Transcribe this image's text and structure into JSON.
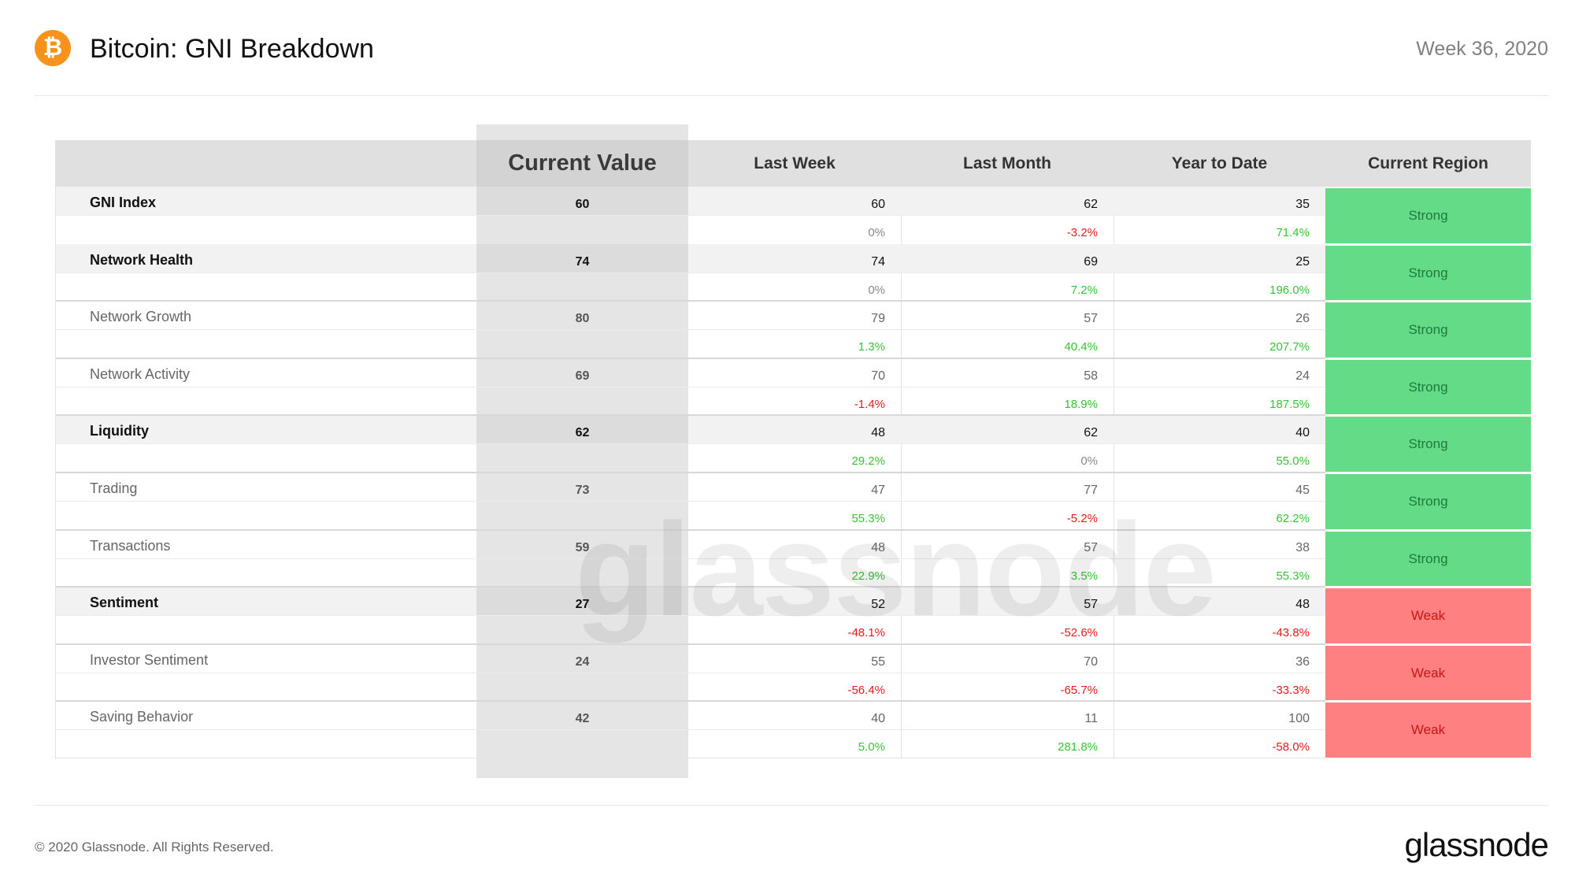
{
  "header": {
    "logo_glyph": "₿",
    "title": "Bitcoin: GNI Breakdown",
    "week": "Week 36, 2020"
  },
  "watermark": "glassnode",
  "footer": {
    "copyright": "© 2020 Glassnode. All Rights Reserved.",
    "brand": "glassnode"
  },
  "colors": {
    "bitcoin_orange": "#f7931a",
    "strong_bg": "#63db87",
    "weak_bg": "#ff8080",
    "positive": "#33c633",
    "negative": "#e31b1b"
  },
  "chart_data": {
    "type": "table",
    "columns": [
      "",
      "Current Value",
      "Last Week",
      "Last Month",
      "Year to Date",
      "Current Region"
    ],
    "rows": [
      {
        "name": "GNI Index",
        "level": "main",
        "current": "60",
        "last_week": "60",
        "last_week_change": "0%",
        "last_month": "62",
        "last_month_change": "-3.2%",
        "ytd": "35",
        "ytd_change": "71.4%",
        "region": "Strong"
      },
      {
        "name": "Network Health",
        "level": "main",
        "current": "74",
        "last_week": "74",
        "last_week_change": "0%",
        "last_month": "69",
        "last_month_change": "7.2%",
        "ytd": "25",
        "ytd_change": "196.0%",
        "region": "Strong"
      },
      {
        "name": "Network Growth",
        "level": "sub",
        "current": "80",
        "last_week": "79",
        "last_week_change": "1.3%",
        "last_month": "57",
        "last_month_change": "40.4%",
        "ytd": "26",
        "ytd_change": "207.7%",
        "region": "Strong"
      },
      {
        "name": "Network Activity",
        "level": "sub",
        "current": "69",
        "last_week": "70",
        "last_week_change": "-1.4%",
        "last_month": "58",
        "last_month_change": "18.9%",
        "ytd": "24",
        "ytd_change": "187.5%",
        "region": "Strong"
      },
      {
        "name": "Liquidity",
        "level": "main",
        "current": "62",
        "last_week": "48",
        "last_week_change": "29.2%",
        "last_month": "62",
        "last_month_change": "0%",
        "ytd": "40",
        "ytd_change": "55.0%",
        "region": "Strong"
      },
      {
        "name": "Trading",
        "level": "sub",
        "current": "73",
        "last_week": "47",
        "last_week_change": "55.3%",
        "last_month": "77",
        "last_month_change": "-5.2%",
        "ytd": "45",
        "ytd_change": "62.2%",
        "region": "Strong"
      },
      {
        "name": "Transactions",
        "level": "sub",
        "current": "59",
        "last_week": "48",
        "last_week_change": "22.9%",
        "last_month": "57",
        "last_month_change": "3.5%",
        "ytd": "38",
        "ytd_change": "55.3%",
        "region": "Strong"
      },
      {
        "name": "Sentiment",
        "level": "main",
        "current": "27",
        "last_week": "52",
        "last_week_change": "-48.1%",
        "last_month": "57",
        "last_month_change": "-52.6%",
        "ytd": "48",
        "ytd_change": "-43.8%",
        "region": "Weak"
      },
      {
        "name": "Investor Sentiment",
        "level": "sub",
        "current": "24",
        "last_week": "55",
        "last_week_change": "-56.4%",
        "last_month": "70",
        "last_month_change": "-65.7%",
        "ytd": "36",
        "ytd_change": "-33.3%",
        "region": "Weak"
      },
      {
        "name": "Saving Behavior",
        "level": "sub",
        "current": "42",
        "last_week": "40",
        "last_week_change": "5.0%",
        "last_month": "11",
        "last_month_change": "281.8%",
        "ytd": "100",
        "ytd_change": "-58.0%",
        "region": "Weak"
      }
    ]
  }
}
